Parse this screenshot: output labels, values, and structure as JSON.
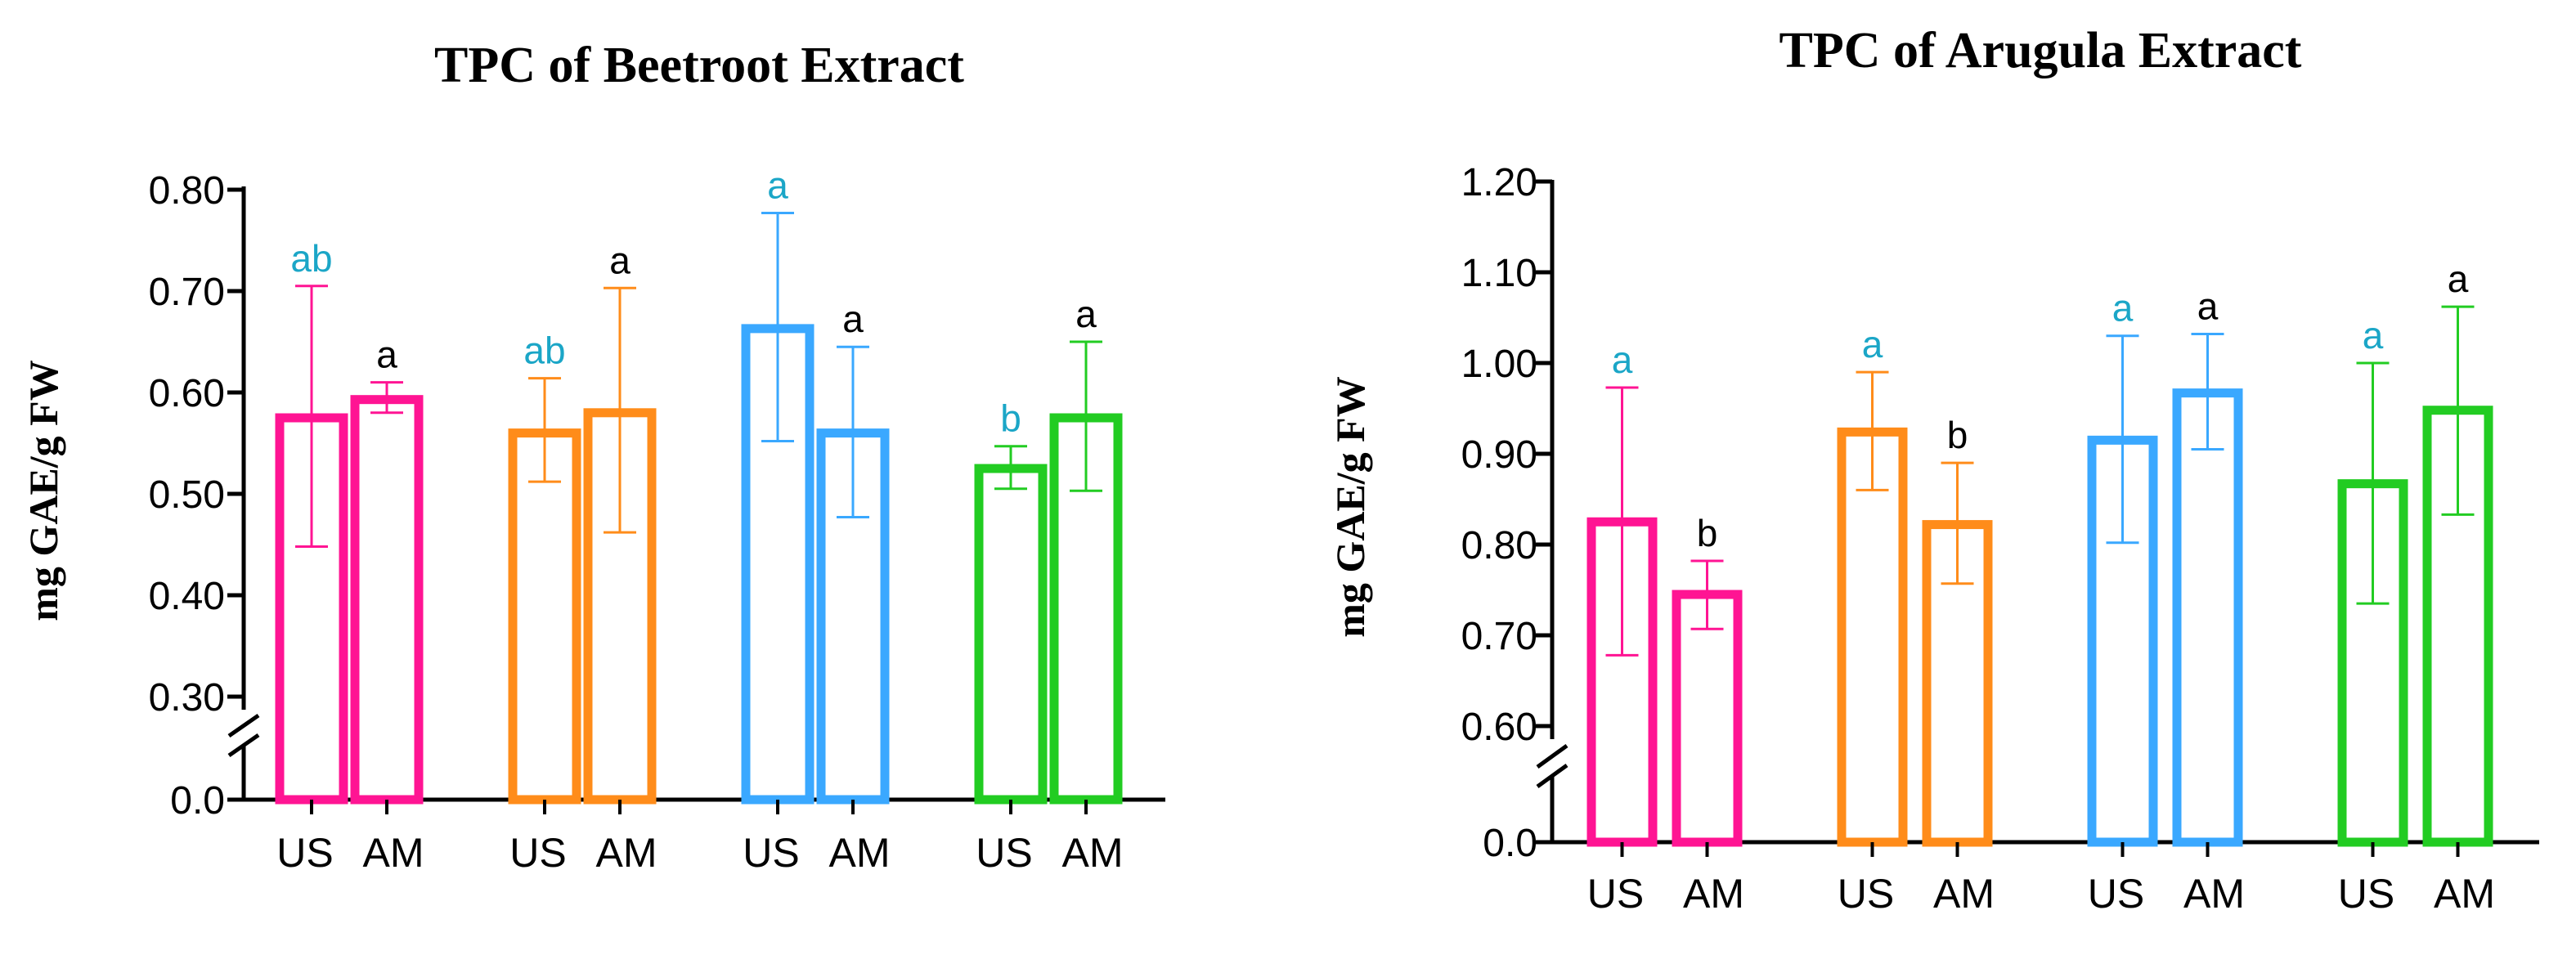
{
  "colors": {
    "pink": "#ff1493",
    "orange": "#ff8c1a",
    "blue": "#3aa8ff",
    "green": "#22cc22",
    "sig_teal": "#1ba6c7",
    "sig_black": "#000000"
  },
  "chart_data": [
    {
      "type": "bar",
      "title": "TPC of Beetroot Extract",
      "ylabel": "mg GAE/g FW",
      "xlabel": "",
      "axis_break": true,
      "ylim": [
        0.3,
        0.8
      ],
      "ticks": [
        "0.80",
        "0.70",
        "0.60",
        "0.50",
        "0.40",
        "0.30",
        "0.0"
      ],
      "bar_labels": [
        "US",
        "AM"
      ],
      "groups": [
        {
          "color": "pink",
          "bars": [
            {
              "label": "US",
              "value": 0.575,
              "err_lo": 0.448,
              "err_hi": 0.705,
              "sig": "ab",
              "sig_color": "teal"
            },
            {
              "label": "AM",
              "value": 0.593,
              "err_lo": 0.58,
              "err_hi": 0.61,
              "sig": "a",
              "sig_color": "black"
            }
          ]
        },
        {
          "color": "orange",
          "bars": [
            {
              "label": "US",
              "value": 0.56,
              "err_lo": 0.512,
              "err_hi": 0.614,
              "sig": "ab",
              "sig_color": "teal"
            },
            {
              "label": "AM",
              "value": 0.58,
              "err_lo": 0.462,
              "err_hi": 0.703,
              "sig": "a",
              "sig_color": "black"
            }
          ]
        },
        {
          "color": "blue",
          "bars": [
            {
              "label": "US",
              "value": 0.663,
              "err_lo": 0.552,
              "err_hi": 0.777,
              "sig": "a",
              "sig_color": "teal"
            },
            {
              "label": "AM",
              "value": 0.56,
              "err_lo": 0.477,
              "err_hi": 0.645,
              "sig": "a",
              "sig_color": "black"
            }
          ]
        },
        {
          "color": "green",
          "bars": [
            {
              "label": "US",
              "value": 0.525,
              "err_lo": 0.505,
              "err_hi": 0.547,
              "sig": "b",
              "sig_color": "teal"
            },
            {
              "label": "AM",
              "value": 0.575,
              "err_lo": 0.503,
              "err_hi": 0.65,
              "sig": "a",
              "sig_color": "black"
            }
          ]
        }
      ]
    },
    {
      "type": "bar",
      "title": "TPC of Arugula Extract",
      "ylabel": "mg GAE/g FW",
      "xlabel": "",
      "axis_break": true,
      "ylim": [
        0.6,
        1.2
      ],
      "ticks": [
        "1.20",
        "1.10",
        "1.00",
        "0.90",
        "0.80",
        "0.70",
        "0.60",
        "0.0"
      ],
      "bar_labels": [
        "US",
        "AM"
      ],
      "groups": [
        {
          "color": "pink",
          "bars": [
            {
              "label": "US",
              "value": 0.825,
              "err_lo": 0.678,
              "err_hi": 0.973,
              "sig": "a",
              "sig_color": "teal"
            },
            {
              "label": "AM",
              "value": 0.745,
              "err_lo": 0.707,
              "err_hi": 0.782,
              "sig": "b",
              "sig_color": "black"
            }
          ]
        },
        {
          "color": "orange",
          "bars": [
            {
              "label": "US",
              "value": 0.924,
              "err_lo": 0.86,
              "err_hi": 0.99,
              "sig": "a",
              "sig_color": "teal"
            },
            {
              "label": "AM",
              "value": 0.822,
              "err_lo": 0.757,
              "err_hi": 0.89,
              "sig": "b",
              "sig_color": "black"
            }
          ]
        },
        {
          "color": "blue",
          "bars": [
            {
              "label": "US",
              "value": 0.915,
              "err_lo": 0.802,
              "err_hi": 1.03,
              "sig": "a",
              "sig_color": "teal"
            },
            {
              "label": "AM",
              "value": 0.967,
              "err_lo": 0.905,
              "err_hi": 1.032,
              "sig": "a",
              "sig_color": "black"
            }
          ]
        },
        {
          "color": "green",
          "bars": [
            {
              "label": "US",
              "value": 0.867,
              "err_lo": 0.735,
              "err_hi": 1.0,
              "sig": "a",
              "sig_color": "teal"
            },
            {
              "label": "AM",
              "value": 0.948,
              "err_lo": 0.833,
              "err_hi": 1.062,
              "sig": "a",
              "sig_color": "black"
            }
          ]
        }
      ]
    }
  ]
}
